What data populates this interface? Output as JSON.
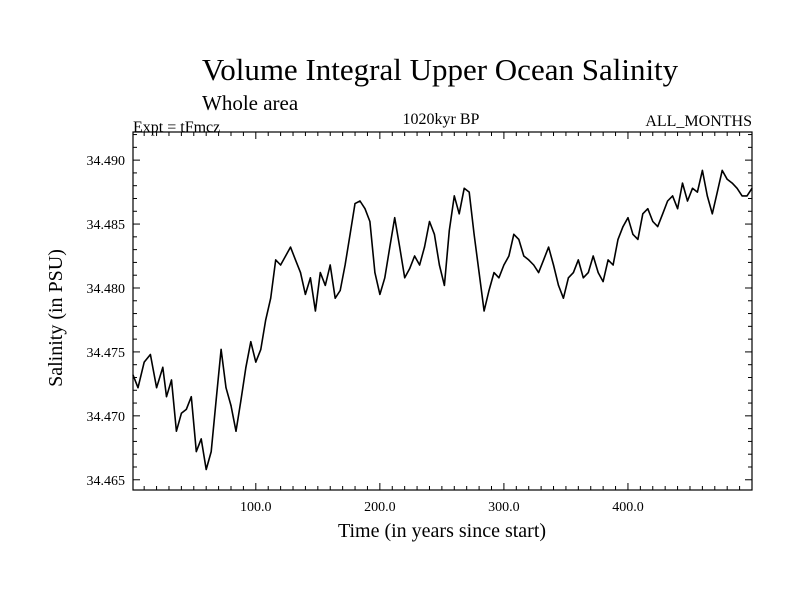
{
  "chart_data": {
    "type": "line",
    "title": "Volume Integral Upper Ocean Salinity",
    "subtitle": "Whole area",
    "left_label": "Expt = tFmcz",
    "center_label": "1020kyr BP",
    "right_label": "ALL_MONTHS",
    "xlabel": "Time (in years since start)",
    "ylabel": "Salinity (in PSU)",
    "xlim": [
      1,
      500
    ],
    "ylim": [
      34.4642,
      34.4922
    ],
    "x_ticks": [
      100,
      200,
      300,
      400
    ],
    "x_tick_labels": [
      "100.0",
      "200.0",
      "300.0",
      "400.0"
    ],
    "y_ticks": [
      34.465,
      34.47,
      34.475,
      34.48,
      34.485,
      34.49
    ],
    "y_tick_labels": [
      "34.465",
      "34.470",
      "34.475",
      "34.480",
      "34.485",
      "34.490"
    ],
    "grid": false,
    "series": [
      {
        "name": "salinity",
        "color": "#000000",
        "x": [
          1,
          5,
          10,
          15,
          20,
          25,
          28,
          32,
          36,
          40,
          44,
          48,
          52,
          56,
          60,
          64,
          68,
          72,
          76,
          80,
          84,
          88,
          92,
          96,
          100,
          104,
          108,
          112,
          116,
          120,
          124,
          128,
          132,
          136,
          140,
          144,
          148,
          152,
          156,
          160,
          164,
          168,
          172,
          176,
          180,
          184,
          188,
          192,
          196,
          200,
          204,
          208,
          212,
          216,
          220,
          224,
          228,
          232,
          236,
          240,
          244,
          248,
          252,
          256,
          260,
          264,
          268,
          272,
          276,
          280,
          284,
          288,
          292,
          296,
          300,
          304,
          308,
          312,
          316,
          320,
          324,
          328,
          332,
          336,
          340,
          344,
          348,
          352,
          356,
          360,
          364,
          368,
          372,
          376,
          380,
          384,
          388,
          392,
          396,
          400,
          404,
          408,
          412,
          416,
          420,
          424,
          428,
          432,
          436,
          440,
          444,
          448,
          452,
          456,
          460,
          464,
          468,
          472,
          476,
          480,
          484,
          488,
          492,
          496,
          500
        ],
        "values": [
          34.4732,
          34.4722,
          34.4742,
          34.4748,
          34.4722,
          34.4738,
          34.4715,
          34.4728,
          34.4688,
          34.4702,
          34.4705,
          34.4715,
          34.4672,
          34.4682,
          34.4658,
          34.4672,
          34.4712,
          34.4752,
          34.4722,
          34.4708,
          34.4688,
          34.4712,
          34.4738,
          34.4758,
          34.4742,
          34.4752,
          34.4775,
          34.4792,
          34.4822,
          34.4818,
          34.4825,
          34.4832,
          34.4822,
          34.4812,
          34.4795,
          34.4808,
          34.4782,
          34.4812,
          34.4802,
          34.4818,
          34.4792,
          34.4798,
          34.4818,
          34.4842,
          34.4866,
          34.4868,
          34.4862,
          34.4852,
          34.4812,
          34.4795,
          34.4808,
          34.4832,
          34.4855,
          34.4832,
          34.4808,
          34.4815,
          34.4825,
          34.4818,
          34.4832,
          34.4852,
          34.4842,
          34.4818,
          34.4802,
          34.4845,
          34.4872,
          34.4858,
          34.4878,
          34.4875,
          34.4842,
          34.4812,
          34.4782,
          34.4798,
          34.4812,
          34.4808,
          34.4818,
          34.4825,
          34.4842,
          34.4838,
          34.4825,
          34.4822,
          34.4818,
          34.4812,
          34.4822,
          34.4832,
          34.4818,
          34.4802,
          34.4792,
          34.4808,
          34.4812,
          34.4822,
          34.4808,
          34.4812,
          34.4825,
          34.4812,
          34.4805,
          34.4822,
          34.4818,
          34.4838,
          34.4848,
          34.4855,
          34.4842,
          34.4838,
          34.4858,
          34.4862,
          34.4852,
          34.4848,
          34.4858,
          34.4868,
          34.4872,
          34.4862,
          34.4882,
          34.4868,
          34.4878,
          34.4875,
          34.4892,
          34.4872,
          34.4858,
          34.4875,
          34.4892,
          34.4885,
          34.4882,
          34.4878,
          34.4872,
          34.4872,
          34.4878
        ]
      }
    ]
  }
}
